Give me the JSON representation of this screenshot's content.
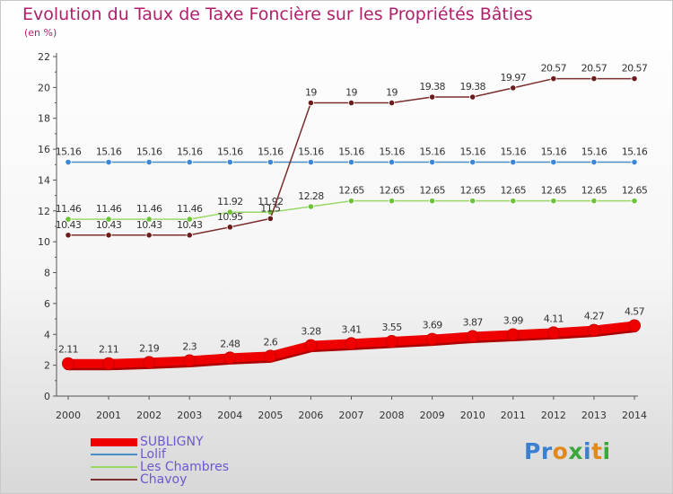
{
  "header": {
    "title": "Evolution du Taux de Taxe Foncière sur les Propriétés Bâties",
    "unit": "(en %)"
  },
  "logo": {
    "letters": [
      "P",
      "r",
      "o",
      "x",
      "i",
      "t",
      "i"
    ],
    "colors": [
      "#3a7fd0",
      "#3a7fd0",
      "#e08a1e",
      "#3aa83a",
      "#3a7fd0",
      "#e08a1e",
      "#3aa83a"
    ]
  },
  "chart_data": {
    "type": "line",
    "title": "Evolution du Taux de Taxe Foncière sur les Propriétés Bâties",
    "ylabel": "(en %)",
    "xlabel": "",
    "x": [
      "2000",
      "2001",
      "2002",
      "2003",
      "2004",
      "2005",
      "2006",
      "2007",
      "2008",
      "2009",
      "2010",
      "2011",
      "2012",
      "2013",
      "2014"
    ],
    "ylim": [
      0,
      22
    ],
    "yticks": [
      "0",
      "2",
      "4",
      "6",
      "8",
      "10",
      "12",
      "14",
      "16",
      "18",
      "20",
      "22"
    ],
    "grid": false,
    "legend": "bottom-left",
    "series": [
      {
        "name": "SUBLIGNY",
        "color": "#ee0000",
        "emphasis": true,
        "values": [
          2.11,
          2.11,
          2.19,
          2.3,
          2.48,
          2.6,
          3.28,
          3.41,
          3.55,
          3.69,
          3.87,
          3.99,
          4.11,
          4.27,
          4.57
        ],
        "labels": [
          "2.11",
          "2.11",
          "2.19",
          "2.3",
          "2.48",
          "2.6",
          "3.28",
          "3.41",
          "3.55",
          "3.69",
          "3.87",
          "3.99",
          "4.11",
          "4.27",
          "4.57"
        ]
      },
      {
        "name": "Lolif",
        "color": "#4a8ec8",
        "marker": "#3b86d6",
        "values": [
          15.16,
          15.16,
          15.16,
          15.16,
          15.16,
          15.16,
          15.16,
          15.16,
          15.16,
          15.16,
          15.16,
          15.16,
          15.16,
          15.16,
          15.16
        ],
        "labels": [
          "15.16",
          "15.16",
          "15.16",
          "15.16",
          "15.16",
          "15.16",
          "15.16",
          "15.16",
          "15.16",
          "15.16",
          "15.16",
          "15.16",
          "15.16",
          "15.16",
          "15.16"
        ]
      },
      {
        "name": "Les Chambres",
        "color": "#9ad86a",
        "marker": "#6cc238",
        "values": [
          11.46,
          11.46,
          11.46,
          11.46,
          11.92,
          11.92,
          12.28,
          12.65,
          12.65,
          12.65,
          12.65,
          12.65,
          12.65,
          12.65,
          12.65
        ],
        "labels": [
          "11.46",
          "11.46",
          "11.46",
          "11.46",
          "11.92",
          "11.92",
          "12.28",
          "12.65",
          "12.65",
          "12.65",
          "12.65",
          "12.65",
          "12.65",
          "12.65",
          "12.65"
        ]
      },
      {
        "name": "Chavoy",
        "color": "#7b2c2c",
        "marker": "#6b1c1c",
        "values": [
          10.43,
          10.43,
          10.43,
          10.43,
          10.95,
          11.5,
          19,
          19,
          19,
          19.38,
          19.38,
          19.97,
          20.57,
          20.57,
          20.57
        ],
        "labels": [
          "10.43",
          "10.43",
          "10.43",
          "10.43",
          "10.95",
          "11.5",
          "19",
          "19",
          "19",
          "19.38",
          "19.38",
          "19.97",
          "20.57",
          "20.57",
          "20.57"
        ]
      }
    ]
  }
}
